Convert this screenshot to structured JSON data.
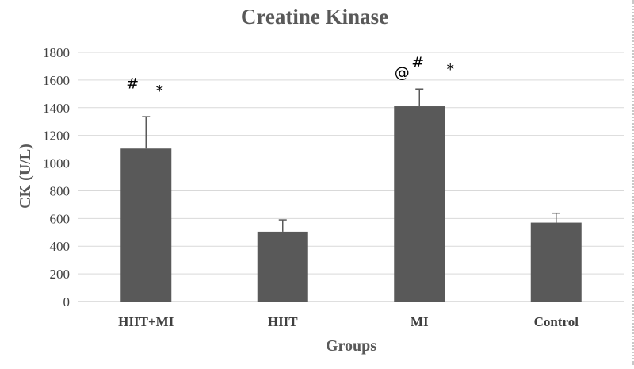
{
  "chart_data": {
    "type": "bar",
    "title": "Creatine Kinase",
    "xlabel": "Groups",
    "ylabel": "CK (U/L)",
    "categories": [
      "HIIT+MI",
      "HIIT",
      "MI",
      "Control"
    ],
    "values": [
      1105,
      505,
      1410,
      570
    ],
    "error_upper": [
      1335,
      590,
      1535,
      638
    ],
    "ylim": [
      0,
      1800
    ],
    "yticks": [
      0,
      200,
      400,
      600,
      800,
      1000,
      1200,
      1400,
      1600,
      1800
    ],
    "ytick_labels": [
      "0",
      "200",
      "400",
      "600",
      "800",
      "1000",
      "1200",
      "1400",
      "1600",
      "1800"
    ],
    "grid": true,
    "bar_color": "#595959",
    "grid_color": "#d9d9d9",
    "annotations": [
      {
        "category": "HIIT+MI",
        "text": "#",
        "y": 1540
      },
      {
        "category": "HIIT+MI",
        "text": "*",
        "y": 1485
      },
      {
        "category": "MI",
        "text": "@",
        "y": 1620
      },
      {
        "category": "MI",
        "text": "#",
        "y": 1690
      },
      {
        "category": "MI",
        "text": "*",
        "y": 1640
      }
    ]
  }
}
